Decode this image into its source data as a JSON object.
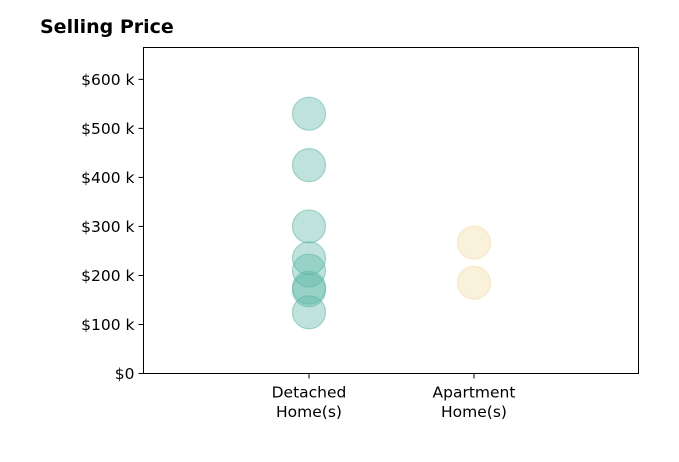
{
  "chart_data": {
    "type": "scatter",
    "title": "Selling Price",
    "xlabel": "",
    "ylabel": "",
    "categories": [
      [
        "Detached",
        "Home(s)"
      ],
      [
        "Apartment",
        "Home(s)"
      ]
    ],
    "ylim": [
      0,
      665000
    ],
    "yticks": [
      0,
      100000,
      200000,
      300000,
      400000,
      500000,
      600000
    ],
    "ytick_labels": [
      "$0",
      "$100 k",
      "$200 k",
      "$300 k",
      "$400 k",
      "$500 k",
      "$600 k"
    ],
    "grid": false,
    "series": [
      {
        "category_index": 0,
        "color": "#5fb8a8",
        "values": [
          530000,
          425000,
          300000,
          235000,
          210000,
          175000,
          170000,
          125000
        ]
      },
      {
        "category_index": 1,
        "color": "#f3dba4",
        "values": [
          267000,
          185000
        ]
      }
    ]
  }
}
